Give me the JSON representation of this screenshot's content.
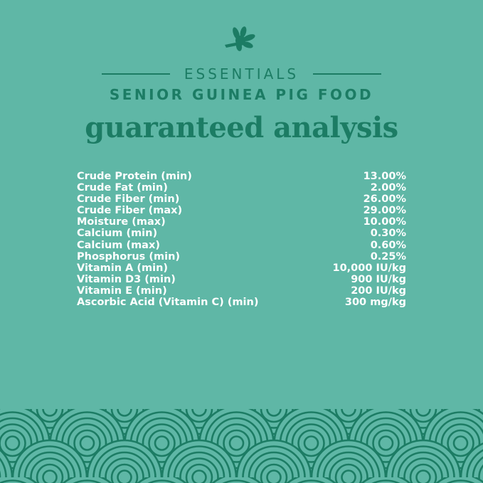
{
  "header": {
    "logo_icon": "leaf-icon",
    "brand": "ESSENTIALS",
    "product": "SENIOR GUINEA PIG FOOD",
    "title": "guaranteed analysis"
  },
  "analysis": [
    {
      "label": "Crude Protein (min)",
      "value": "13.00%"
    },
    {
      "label": "Crude Fat (min)",
      "value": "2.00%"
    },
    {
      "label": "Crude Fiber (min)",
      "value": "26.00%"
    },
    {
      "label": "Crude Fiber (max)",
      "value": "29.00%"
    },
    {
      "label": "Moisture (max)",
      "value": "10.00%"
    },
    {
      "label": "Calcium (min)",
      "value": "0.30%"
    },
    {
      "label": "Calcium (max)",
      "value": "0.60%"
    },
    {
      "label": "Phosphorus (min)",
      "value": "0.25%"
    },
    {
      "label": "Vitamin A (min)",
      "value": "10,000 IU/kg"
    },
    {
      "label": "Vitamin D3 (min)",
      "value": "900 IU/kg"
    },
    {
      "label": "Vitamin E (min)",
      "value": "200 IU/kg"
    },
    {
      "label": "Ascorbic Acid (Vitamin C) (min)",
      "value": "300 mg/kg"
    }
  ],
  "colors": {
    "background": "#5fb7a6",
    "accent": "#1c7c64",
    "text": "#ffffff"
  }
}
